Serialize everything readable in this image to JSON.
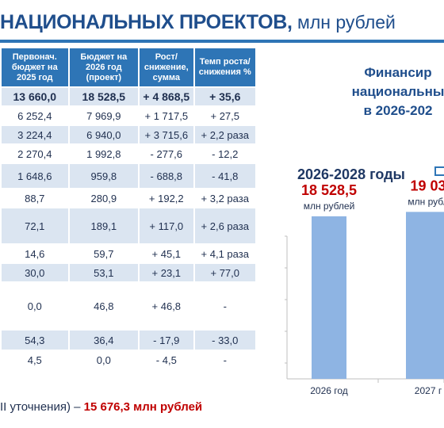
{
  "header": {
    "title_bold": "НАЦИОНАЛЬНЫХ ПРОЕКТОВ,",
    "title_light": " млн рублей"
  },
  "table": {
    "columns": [
      "Первонач. бюджет на 2025 год",
      "Бюджет на 2026 год (проект)",
      "Рост/ снижение, сумма",
      "Темп роста/ снижения %"
    ],
    "rows": [
      [
        "13 660,0",
        "18 528,5",
        "+ 4 868,5",
        "+ 35,6"
      ],
      [
        "6 252,4",
        "7 969,9",
        "+ 1 717,5",
        "+ 27,5"
      ],
      [
        "3 224,4",
        "6 940,0",
        "+ 3 715,6",
        "+ 2,2 раза"
      ],
      [
        "2 270,4",
        "1 992,8",
        "- 277,6",
        "- 12,2"
      ],
      [
        "1 648,6",
        "959,8",
        "- 688,8",
        "- 41,8"
      ],
      [
        "88,7",
        "280,9",
        "+ 192,2",
        "+ 3,2 раза"
      ],
      [
        "72,1",
        "189,1",
        "+ 117,0",
        "+ 2,6 раза"
      ],
      [
        "14,6",
        "59,7",
        "+ 45,1",
        "+ 4,1 раза"
      ],
      [
        "30,0",
        "53,1",
        "+ 23,1",
        "+ 77,0"
      ],
      [
        "0,0",
        "46,8",
        "+ 46,8",
        "-"
      ],
      [
        "54,3",
        "36,4",
        "- 17,9",
        "- 33,0"
      ],
      [
        "4,5",
        "0,0",
        "- 4,5",
        "-"
      ]
    ]
  },
  "footnote": {
    "prefix": "II уточнения) – ",
    "highlight": "15 676,3 млн рублей"
  },
  "right_panel": {
    "title_lines": [
      "Финансир",
      "национальны",
      "в 2026-202"
    ],
    "period": "2026-2028 годы"
  },
  "chart_data": {
    "type": "bar",
    "categories": [
      "2026 год",
      "2027 г"
    ],
    "values": [
      18528.5,
      19030
    ],
    "value_labels": [
      "18 528,5",
      "19 03"
    ],
    "unit_labels": [
      "млн рублей",
      "млн рубл"
    ],
    "ylim": [
      0,
      30000
    ],
    "bar_color": "#8eb4e3",
    "label_color": "#c00000"
  },
  "colors": {
    "accent": "#2e75b6",
    "title": "#1f4e8c",
    "highlight": "#c00000",
    "row_band": "#dbe5f1"
  }
}
